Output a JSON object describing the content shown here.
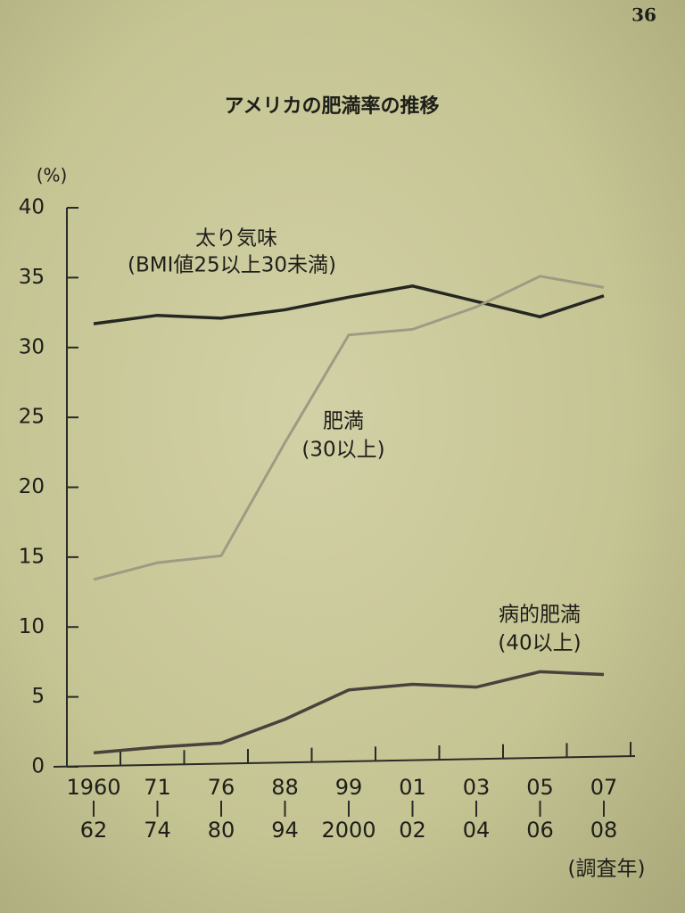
{
  "page_number": "36",
  "chart_data": {
    "type": "line",
    "title": "アメリカの肥満率の推移",
    "y_unit": "(%)",
    "x_unit": "(調査年)",
    "categories": [
      [
        "1960",
        "62"
      ],
      [
        "71",
        "74"
      ],
      [
        "76",
        "80"
      ],
      [
        "88",
        "94"
      ],
      [
        "99",
        "2000"
      ],
      [
        "01",
        "02"
      ],
      [
        "03",
        "04"
      ],
      [
        "05",
        "06"
      ],
      [
        "07",
        "08"
      ]
    ],
    "series": [
      {
        "name": "太り気味",
        "note": "(BMI値25以上30未満)",
        "color": "#262622",
        "values": [
          31.7,
          32.3,
          32.1,
          32.7,
          33.6,
          34.4,
          33.3,
          32.2,
          33.7
        ]
      },
      {
        "name": "肥満",
        "note": "(30以上)",
        "color": "#9c9c84",
        "values": [
          13.4,
          14.6,
          15.1,
          23.2,
          30.9,
          31.3,
          32.9,
          35.1,
          34.3
        ]
      },
      {
        "name": "病的肥満",
        "note": "(40以上)",
        "color": "#47423c",
        "values": [
          1.0,
          1.4,
          1.7,
          3.4,
          5.5,
          5.9,
          5.7,
          6.8,
          6.6
        ]
      }
    ],
    "ylim": [
      0,
      40
    ],
    "yticks": [
      0,
      5,
      10,
      15,
      20,
      25,
      30,
      35,
      40
    ]
  }
}
